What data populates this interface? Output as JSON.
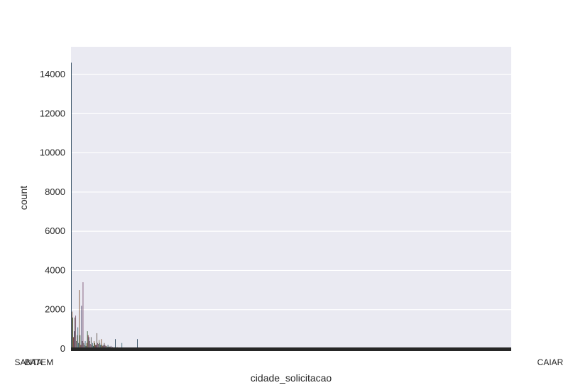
{
  "chart_data": {
    "type": "bar",
    "xlabel": "cidade_solicitacao",
    "ylabel": "count",
    "ylim": [
      0,
      15000
    ],
    "yticks": [
      0,
      2000,
      4000,
      6000,
      8000,
      10000,
      12000,
      14000
    ],
    "ytick_labels": [
      "0",
      "2000",
      "4000",
      "6000",
      "8000",
      "10000",
      "12000",
      "14000"
    ],
    "grid": true,
    "background": "#eaeaf2",
    "gridline_color": "#ffffff",
    "category_count_estimate": 600,
    "legible_x_tick_labels": [
      "SANTA",
      "BATEM",
      "CAIAR"
    ],
    "series": [
      {
        "values": [
          14600,
          1900,
          1600,
          600,
          900,
          1600,
          1700,
          400,
          700,
          1100,
          300,
          3000,
          700,
          200,
          2200,
          400,
          3400,
          300,
          200,
          400,
          150,
          300,
          900,
          700,
          600,
          400,
          250,
          600,
          200,
          300,
          150,
          400,
          300,
          200,
          200,
          800,
          300,
          250,
          450,
          300,
          200,
          500,
          200,
          150,
          200,
          300,
          200,
          150,
          150,
          100,
          200,
          100,
          120,
          100,
          150,
          80,
          100,
          80,
          60,
          80,
          500,
          80,
          60,
          80,
          50,
          60,
          50,
          40,
          50,
          300,
          60,
          50,
          40,
          60,
          40,
          30,
          50,
          40,
          30,
          30,
          30,
          40,
          30,
          20,
          30,
          20,
          25,
          20,
          15,
          20,
          500,
          20,
          15,
          20,
          15,
          10,
          15,
          10,
          10,
          10,
          10,
          10,
          8,
          8,
          8,
          6,
          6,
          6,
          5,
          5,
          5,
          5,
          5,
          4,
          4,
          4,
          4,
          3,
          3,
          3
        ]
      }
    ]
  }
}
